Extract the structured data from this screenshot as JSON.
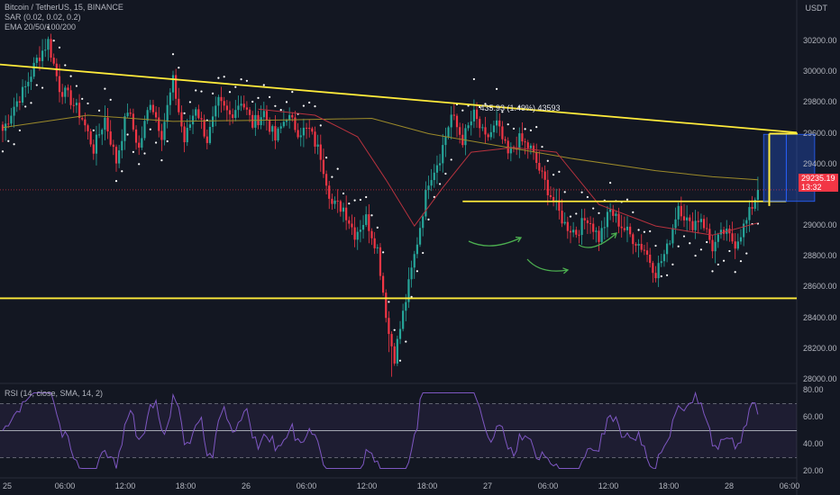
{
  "header": {
    "symbol": "Bitcoin / TetherUS, 15, BINANCE",
    "sar": "SAR (0.02, 0.02, 0.2)",
    "ema": "EMA 20/50/100/200",
    "currency": "USDT",
    "rsi_label": "RSI (14, close, SMA, 14, 2)"
  },
  "price_tag": {
    "price": "29235.19",
    "countdown": "13:32"
  },
  "measure": {
    "label": "435.93 (1.49%) 43593"
  },
  "colors": {
    "background": "#131722",
    "up": "#26a69a",
    "down": "#f23645",
    "trendline": "#ffeb3b",
    "rsi": "#7e57c2",
    "measure_fill": "#2962ff",
    "arrow": "#4caf50"
  },
  "chart_data": [
    {
      "type": "candlestick",
      "symbol": "BTCUSDT",
      "timeframe": "15",
      "y_ticks": [
        "30200.00",
        "30000.00",
        "29800.00",
        "29600.00",
        "29400.00",
        "29000.00",
        "28800.00",
        "28600.00",
        "28400.00",
        "28200.00",
        "28000.00"
      ],
      "x_ticks": [
        "25",
        "06:00",
        "12:00",
        "18:00",
        "26",
        "06:00",
        "12:00",
        "18:00",
        "27",
        "06:00",
        "12:00",
        "18:00",
        "28",
        "06:00"
      ],
      "ylim": [
        27900,
        30350
      ],
      "anchors": [
        [
          0,
          29620
        ],
        [
          4,
          29780
        ],
        [
          8,
          29900
        ],
        [
          12,
          30080
        ],
        [
          16,
          30200
        ],
        [
          20,
          29900
        ],
        [
          24,
          29820
        ],
        [
          28,
          29700
        ],
        [
          32,
          29500
        ],
        [
          36,
          29700
        ],
        [
          40,
          29420
        ],
        [
          44,
          29760
        ],
        [
          48,
          29500
        ],
        [
          52,
          29820
        ],
        [
          56,
          29600
        ],
        [
          60,
          29940
        ],
        [
          64,
          29550
        ],
        [
          68,
          29780
        ],
        [
          72,
          29560
        ],
        [
          76,
          29800
        ],
        [
          80,
          29720
        ],
        [
          84,
          29820
        ],
        [
          88,
          29660
        ],
        [
          92,
          29740
        ],
        [
          96,
          29560
        ],
        [
          100,
          29720
        ],
        [
          104,
          29620
        ],
        [
          108,
          29620
        ],
        [
          112,
          29460
        ],
        [
          116,
          29140
        ],
        [
          120,
          29120
        ],
        [
          124,
          28950
        ],
        [
          128,
          29050
        ],
        [
          132,
          28850
        ],
        [
          136,
          28300
        ],
        [
          138,
          28150
        ],
        [
          142,
          28520
        ],
        [
          146,
          28900
        ],
        [
          150,
          29300
        ],
        [
          154,
          29450
        ],
        [
          158,
          29720
        ],
        [
          162,
          29560
        ],
        [
          166,
          29720
        ],
        [
          170,
          29560
        ],
        [
          174,
          29660
        ],
        [
          178,
          29460
        ],
        [
          182,
          29560
        ],
        [
          186,
          29500
        ],
        [
          190,
          29320
        ],
        [
          194,
          29160
        ],
        [
          198,
          29010
        ],
        [
          202,
          28960
        ],
        [
          206,
          29060
        ],
        [
          210,
          28920
        ],
        [
          214,
          29100
        ],
        [
          218,
          29000
        ],
        [
          222,
          28920
        ],
        [
          226,
          28850
        ],
        [
          230,
          28700
        ],
        [
          234,
          28850
        ],
        [
          238,
          29140
        ],
        [
          242,
          29000
        ],
        [
          246,
          29060
        ],
        [
          250,
          28860
        ],
        [
          254,
          28960
        ],
        [
          258,
          28890
        ],
        [
          262,
          29030
        ],
        [
          266,
          29235
        ]
      ],
      "ema200": [
        [
          0,
          29640
        ],
        [
          30,
          29720
        ],
        [
          60,
          29680
        ],
        [
          100,
          29690
        ],
        [
          130,
          29700
        ],
        [
          150,
          29600
        ],
        [
          200,
          29440
        ],
        [
          230,
          29360
        ],
        [
          250,
          29320
        ],
        [
          266,
          29300
        ]
      ],
      "ema20": [
        [
          90,
          29760
        ],
        [
          110,
          29720
        ],
        [
          125,
          29580
        ],
        [
          135,
          29300
        ],
        [
          145,
          29000
        ],
        [
          155,
          29250
        ],
        [
          165,
          29480
        ],
        [
          180,
          29510
        ],
        [
          195,
          29480
        ],
        [
          210,
          29140
        ],
        [
          230,
          29000
        ],
        [
          250,
          28940
        ],
        [
          266,
          29020
        ]
      ],
      "rsi": {
        "ylim": [
          15,
          85
        ],
        "ticks": [
          "80.00",
          "60.00",
          "40.00",
          "20.00"
        ],
        "bands": [
          70,
          50,
          30
        ],
        "last": 62
      },
      "lines": {
        "descending_trendline": [
          [
            0,
            30050
          ],
          [
            330,
            29530
          ]
        ],
        "support": 28530,
        "breakout_level": 29160
      },
      "measure": {
        "from": 29160,
        "to": 29596,
        "change": "435.93 (1.49%) 43593"
      }
    }
  ]
}
